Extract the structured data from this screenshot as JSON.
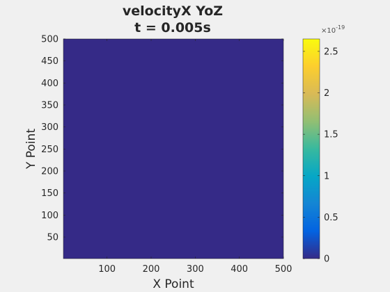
{
  "figure": {
    "background_color": "#f0f0f0",
    "field_color": "#352a87"
  },
  "chart_data": {
    "type": "heatmap",
    "title_lines": [
      "velocityX YoZ",
      "t = 0.005s"
    ],
    "xlabel": "X Point",
    "ylabel": "Y Point",
    "xlim": [
      1,
      500
    ],
    "ylim": [
      1,
      500
    ],
    "x_ticks": [
      100,
      200,
      300,
      400,
      500
    ],
    "y_ticks": [
      50,
      100,
      150,
      200,
      250,
      300,
      350,
      400,
      450,
      500
    ],
    "y_direction": "normal",
    "grid": false,
    "field_value": 0,
    "colormap": "parula",
    "colorbar": {
      "position": "right",
      "limits": [
        0,
        2.65e-19
      ],
      "exponent_label": "×10",
      "exponent_power": "-19",
      "ticks": [
        0,
        0.5,
        1,
        1.5,
        2,
        2.5
      ],
      "tick_labels": [
        "0",
        "0.5",
        "1",
        "1.5",
        "2",
        "2.5"
      ],
      "colormap_stops": [
        "#352a87",
        "#0363e1",
        "#1485d4",
        "#06a7c6",
        "#38b99e",
        "#92bf73",
        "#d9ba56",
        "#fcce2e",
        "#f9fb0e"
      ]
    }
  }
}
